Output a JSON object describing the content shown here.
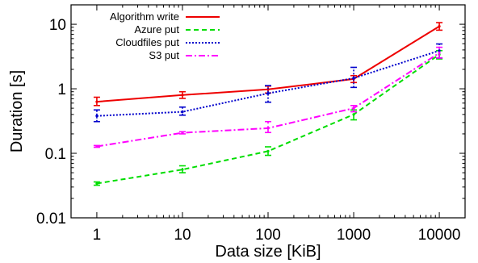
{
  "chart_data": {
    "type": "line",
    "xlabel": "Data size [KiB]",
    "ylabel": "Duration [s]",
    "xscale": "log",
    "yscale": "log",
    "xlim": [
      0.5,
      20000
    ],
    "ylim": [
      0.01,
      20
    ],
    "x": [
      1,
      10,
      100,
      1000,
      10000
    ],
    "xticks": [
      "1",
      "10",
      "100",
      "1000",
      "10000"
    ],
    "yticks": [
      {
        "value": 0.01,
        "label": "0.01"
      },
      {
        "value": 0.1,
        "label": "0.1"
      },
      {
        "value": 1,
        "label": "1"
      },
      {
        "value": 10,
        "label": "10"
      }
    ],
    "grid": false,
    "legend_position": "top-left",
    "series": [
      {
        "name": "Algorithm write",
        "color": "#ee0000",
        "dash": "solid",
        "values": [
          0.63,
          0.8,
          0.98,
          1.42,
          9.3
        ],
        "err_low": [
          0.55,
          0.71,
          0.86,
          1.25,
          8.1
        ],
        "err_high": [
          0.74,
          0.9,
          1.1,
          1.6,
          10.6
        ]
      },
      {
        "name": "Azure put",
        "color": "#00dd00",
        "dash": "dashed",
        "values": [
          0.034,
          0.056,
          0.108,
          0.4,
          3.4
        ],
        "err_low": [
          0.032,
          0.05,
          0.093,
          0.33,
          2.9
        ],
        "err_high": [
          0.036,
          0.064,
          0.126,
          0.47,
          3.9
        ]
      },
      {
        "name": "Cloudfiles put",
        "color": "#0000cc",
        "dash": "dotted",
        "values": [
          0.38,
          0.44,
          0.85,
          1.46,
          3.9
        ],
        "err_low": [
          0.31,
          0.39,
          0.62,
          1.05,
          3.0
        ],
        "err_high": [
          0.47,
          0.52,
          1.12,
          2.15,
          4.95
        ]
      },
      {
        "name": "S3 put",
        "color": "#ff00ff",
        "dash": "dashdot",
        "values": [
          0.128,
          0.208,
          0.245,
          0.5,
          3.6
        ],
        "err_low": [
          0.124,
          0.2,
          0.21,
          0.44,
          3.0
        ],
        "err_high": [
          0.132,
          0.216,
          0.31,
          0.55,
          4.4
        ]
      }
    ]
  }
}
